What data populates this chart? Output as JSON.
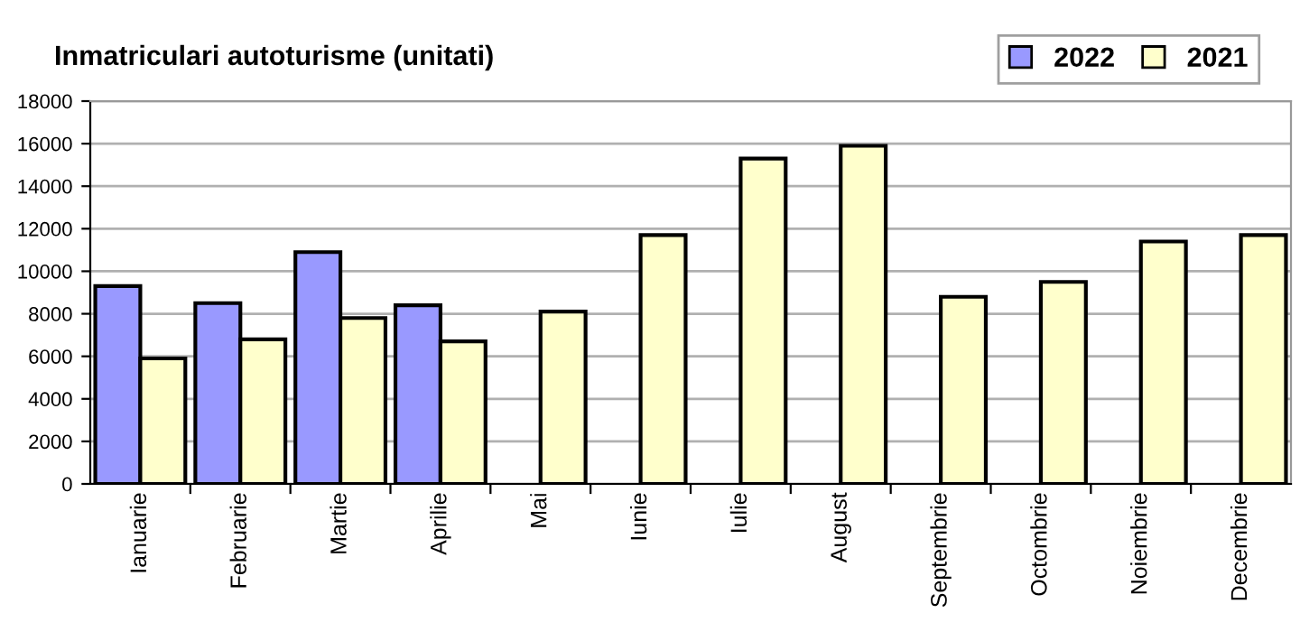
{
  "chart_data": {
    "type": "bar",
    "title": "Inmatriculari autoturisme (unitati)",
    "categories": [
      "Ianuarie",
      "Februarie",
      "Martie",
      "Aprilie",
      "Mai",
      "Iunie",
      "Iulie",
      "August",
      "Septembrie",
      "Octombrie",
      "Noiembrie",
      "Decembrie"
    ],
    "series": [
      {
        "name": "2022",
        "color": "#9999ff",
        "values": [
          9300,
          8500,
          10900,
          8400,
          null,
          null,
          null,
          null,
          null,
          null,
          null,
          null
        ]
      },
      {
        "name": "2021",
        "color": "#ffffcc",
        "values": [
          5900,
          6800,
          7800,
          6700,
          8100,
          11700,
          15300,
          15900,
          8800,
          9500,
          11400,
          11700
        ]
      }
    ],
    "ylim": [
      0,
      18000
    ],
    "yticks": [
      0,
      2000,
      4000,
      6000,
      8000,
      10000,
      12000,
      14000,
      16000,
      18000
    ],
    "grid": "y",
    "legend": "top right"
  }
}
